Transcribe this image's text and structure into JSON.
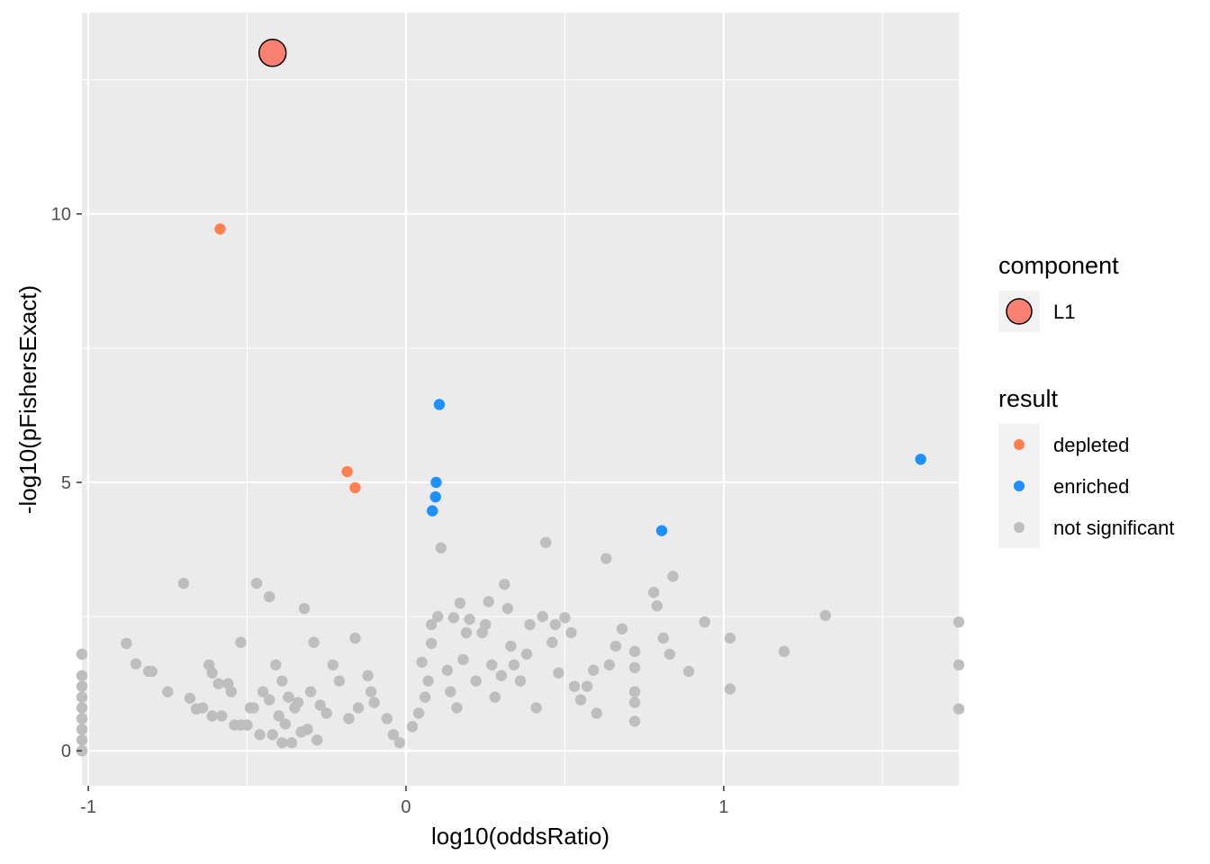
{
  "chart_data": {
    "type": "scatter",
    "title": "",
    "xlabel": "log10(oddsRatio)",
    "ylabel": "-log10(pFishersExact)",
    "xlim": [
      -1.02,
      1.74
    ],
    "ylim": [
      -0.65,
      13.75
    ],
    "x_ticks": [
      -1,
      0,
      1
    ],
    "x_tick_labels": [
      "-1",
      "0",
      "1"
    ],
    "y_ticks": [
      0,
      5,
      10
    ],
    "y_tick_labels": [
      "0",
      "5",
      "10"
    ],
    "grid": true,
    "legend_placement": "right",
    "colors": {
      "panel": "#ebebeb",
      "grid": "#ffffff",
      "depleted": "#ff7f50",
      "enriched": "#1e90ff",
      "not_significant": "#bebebe",
      "component_L1": "#fa8072"
    },
    "legends": [
      {
        "title": "component",
        "entries": [
          {
            "label": "L1",
            "color": "#fa8072",
            "shape": "large-circle-outlined"
          }
        ]
      },
      {
        "title": "result",
        "entries": [
          {
            "label": "depleted",
            "color": "#ff7f50"
          },
          {
            "label": "enriched",
            "color": "#1e90ff"
          },
          {
            "label": "not significant",
            "color": "#bebebe"
          }
        ]
      }
    ],
    "series": [
      {
        "name": "L1",
        "points": [
          [
            -0.42,
            13.0
          ]
        ]
      },
      {
        "name": "depleted",
        "points": [
          [
            -0.585,
            9.72
          ],
          [
            -0.185,
            5.2
          ],
          [
            -0.16,
            4.9
          ]
        ]
      },
      {
        "name": "enriched",
        "points": [
          [
            0.105,
            6.45
          ],
          [
            0.095,
            5.0
          ],
          [
            0.093,
            4.73
          ],
          [
            0.083,
            4.47
          ],
          [
            0.805,
            4.1
          ],
          [
            1.62,
            5.43
          ]
        ]
      },
      {
        "name": "not significant",
        "points": [
          [
            -1.02,
            1.8
          ],
          [
            -1.02,
            1.4
          ],
          [
            -1.02,
            1.2
          ],
          [
            -1.02,
            1.0
          ],
          [
            -1.02,
            0.8
          ],
          [
            -1.02,
            0.6
          ],
          [
            -1.02,
            0.4
          ],
          [
            -1.02,
            0.2
          ],
          [
            -1.02,
            0.0
          ],
          [
            -0.88,
            2.0
          ],
          [
            -0.85,
            1.62
          ],
          [
            -0.81,
            1.48
          ],
          [
            -0.8,
            1.48
          ],
          [
            -0.75,
            1.1
          ],
          [
            -0.7,
            3.12
          ],
          [
            -0.68,
            0.98
          ],
          [
            -0.66,
            0.78
          ],
          [
            -0.64,
            0.8
          ],
          [
            -0.62,
            1.6
          ],
          [
            -0.61,
            1.45
          ],
          [
            -0.61,
            0.65
          ],
          [
            -0.59,
            1.25
          ],
          [
            -0.58,
            0.65
          ],
          [
            -0.56,
            1.25
          ],
          [
            -0.55,
            1.1
          ],
          [
            -0.54,
            0.48
          ],
          [
            -0.52,
            2.02
          ],
          [
            -0.52,
            0.48
          ],
          [
            -0.5,
            0.48
          ],
          [
            -0.49,
            0.8
          ],
          [
            -0.48,
            0.8
          ],
          [
            -0.47,
            3.12
          ],
          [
            -0.46,
            0.3
          ],
          [
            -0.45,
            1.1
          ],
          [
            -0.43,
            2.87
          ],
          [
            -0.43,
            0.95
          ],
          [
            -0.42,
            0.3
          ],
          [
            -0.41,
            1.6
          ],
          [
            -0.4,
            0.65
          ],
          [
            -0.39,
            1.3
          ],
          [
            -0.39,
            0.15
          ],
          [
            -0.38,
            0.5
          ],
          [
            -0.37,
            1.0
          ],
          [
            -0.36,
            0.15
          ],
          [
            -0.35,
            0.8
          ],
          [
            -0.34,
            0.9
          ],
          [
            -0.33,
            0.35
          ],
          [
            -0.32,
            2.65
          ],
          [
            -0.31,
            0.4
          ],
          [
            -0.3,
            1.1
          ],
          [
            -0.29,
            2.02
          ],
          [
            -0.28,
            0.2
          ],
          [
            -0.27,
            0.85
          ],
          [
            -0.25,
            0.7
          ],
          [
            -0.23,
            1.6
          ],
          [
            -0.21,
            1.3
          ],
          [
            -0.18,
            0.6
          ],
          [
            -0.16,
            2.1
          ],
          [
            -0.15,
            0.8
          ],
          [
            -0.12,
            1.4
          ],
          [
            -0.11,
            1.1
          ],
          [
            -0.1,
            0.9
          ],
          [
            -0.06,
            0.6
          ],
          [
            -0.04,
            0.3
          ],
          [
            -0.02,
            0.15
          ],
          [
            0.02,
            0.45
          ],
          [
            0.04,
            0.7
          ],
          [
            0.05,
            1.65
          ],
          [
            0.06,
            1.0
          ],
          [
            0.07,
            1.3
          ],
          [
            0.08,
            2.0
          ],
          [
            0.08,
            2.35
          ],
          [
            0.1,
            2.5
          ],
          [
            0.11,
            3.78
          ],
          [
            0.13,
            1.5
          ],
          [
            0.14,
            1.1
          ],
          [
            0.15,
            2.48
          ],
          [
            0.16,
            0.8
          ],
          [
            0.17,
            2.75
          ],
          [
            0.18,
            1.7
          ],
          [
            0.19,
            2.2
          ],
          [
            0.2,
            2.45
          ],
          [
            0.22,
            1.3
          ],
          [
            0.24,
            2.2
          ],
          [
            0.25,
            2.35
          ],
          [
            0.26,
            2.78
          ],
          [
            0.27,
            1.6
          ],
          [
            0.28,
            1.0
          ],
          [
            0.3,
            1.4
          ],
          [
            0.31,
            3.1
          ],
          [
            0.32,
            2.65
          ],
          [
            0.33,
            1.95
          ],
          [
            0.34,
            1.6
          ],
          [
            0.36,
            1.3
          ],
          [
            0.38,
            1.8
          ],
          [
            0.39,
            2.35
          ],
          [
            0.41,
            0.8
          ],
          [
            0.43,
            2.5
          ],
          [
            0.44,
            3.88
          ],
          [
            0.46,
            2.02
          ],
          [
            0.47,
            2.35
          ],
          [
            0.48,
            1.45
          ],
          [
            0.5,
            2.48
          ],
          [
            0.52,
            2.2
          ],
          [
            0.53,
            1.2
          ],
          [
            0.55,
            0.95
          ],
          [
            0.57,
            1.2
          ],
          [
            0.59,
            1.5
          ],
          [
            0.6,
            0.7
          ],
          [
            0.63,
            3.58
          ],
          [
            0.64,
            1.6
          ],
          [
            0.66,
            1.95
          ],
          [
            0.68,
            2.27
          ],
          [
            0.72,
            1.85
          ],
          [
            0.72,
            1.55
          ],
          [
            0.72,
            1.1
          ],
          [
            0.72,
            0.9
          ],
          [
            0.72,
            0.55
          ],
          [
            0.78,
            2.95
          ],
          [
            0.79,
            2.7
          ],
          [
            0.81,
            2.1
          ],
          [
            0.83,
            1.8
          ],
          [
            0.84,
            3.25
          ],
          [
            0.89,
            1.48
          ],
          [
            0.94,
            2.4
          ],
          [
            1.02,
            2.1
          ],
          [
            1.02,
            1.15
          ],
          [
            1.19,
            1.85
          ],
          [
            1.32,
            2.52
          ],
          [
            1.74,
            2.4
          ],
          [
            1.74,
            1.6
          ],
          [
            1.74,
            0.78
          ]
        ]
      }
    ]
  }
}
